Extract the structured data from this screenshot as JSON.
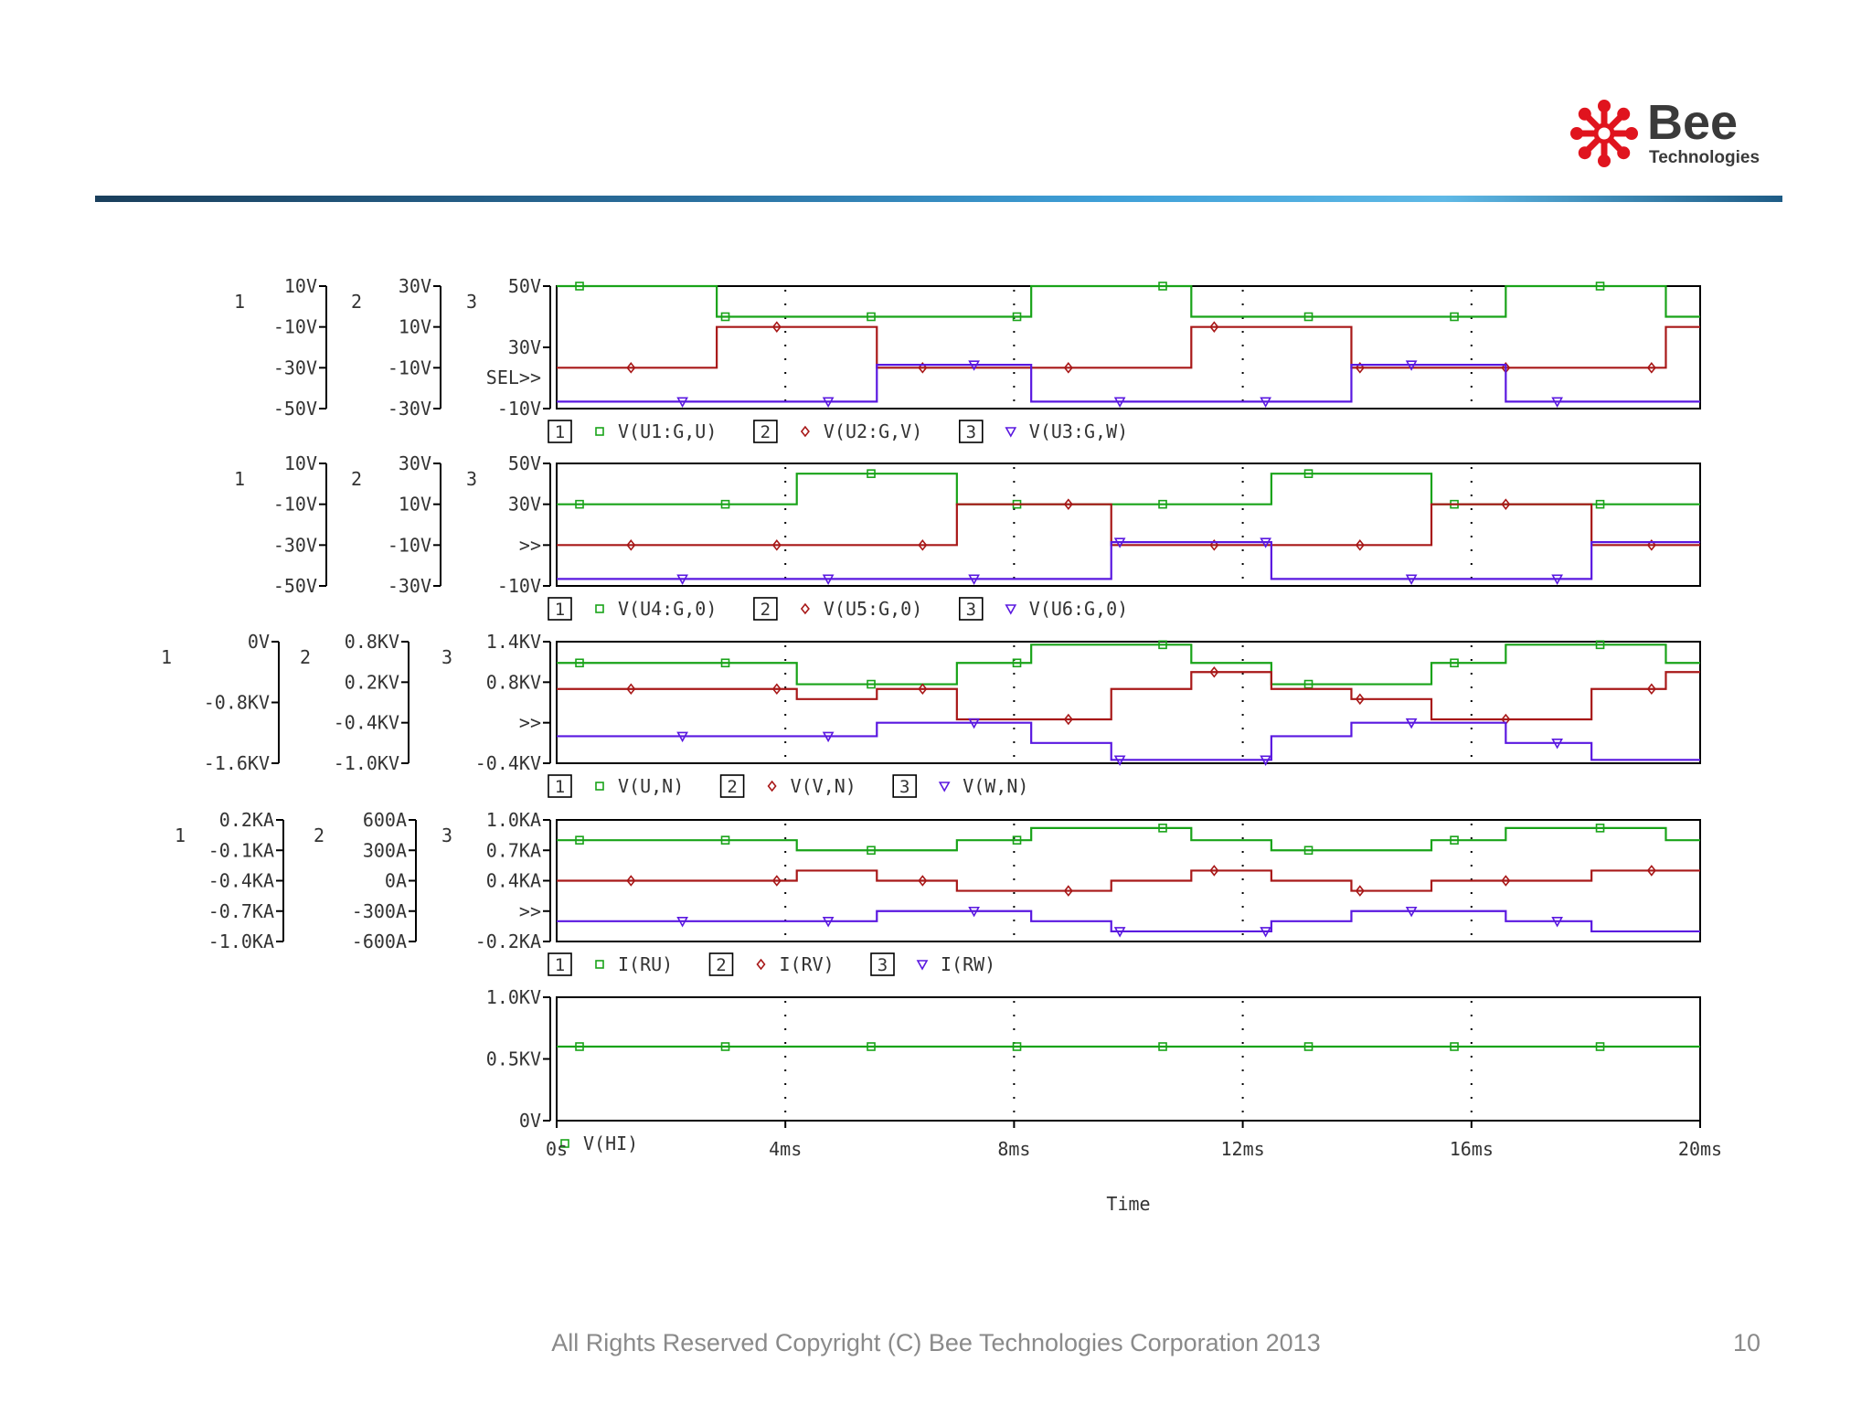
{
  "slide": {
    "copyright": "All Rights Reserved Copyright (C) Bee Technologies Corporation 2013",
    "page_number": "10",
    "logo": {
      "name": "Bee",
      "subtitle": "Technologies"
    }
  },
  "colors": {
    "trace1": "#19a319",
    "trace2": "#a81818",
    "trace3": "#5a18e0",
    "axis": "#000000",
    "text": "#333333",
    "logo_red": "#e0141e"
  },
  "chart_data": {
    "type": "line",
    "xlabel": "Time",
    "x_ticks": [
      "0s",
      "4ms",
      "8ms",
      "12ms",
      "16ms",
      "20ms"
    ],
    "xlim": [
      0,
      20
    ],
    "x_unit": "ms",
    "panels": [
      {
        "axes": [
          {
            "index": "1",
            "ticks": [
              "10V",
              "-10V",
              "-30V",
              "-50V"
            ],
            "ylim": [
              -50,
              10
            ]
          },
          {
            "index": "2",
            "ticks": [
              "30V",
              "10V",
              "-10V",
              "-30V"
            ],
            "ylim": [
              -30,
              30
            ]
          },
          {
            "index": "3",
            "ticks": [
              "50V",
              "30V",
              "-10V"
            ],
            "ylim": [
              -10,
              60
            ],
            "sel_marker": "SEL>>"
          }
        ],
        "series": [
          {
            "name": "V(U1:G,U)",
            "axis": "1",
            "marker": "square",
            "low": -5,
            "high": 10,
            "transitions": [
              2.8,
              8.3,
              11.1,
              16.6,
              19.4
            ],
            "start_high": true
          },
          {
            "name": "V(U2:G,V)",
            "axis": "2",
            "marker": "diamond",
            "low": -10,
            "high": 10,
            "transitions": [
              2.8,
              5.6,
              11.1,
              13.9,
              19.4
            ],
            "start_high": false
          },
          {
            "name": "V(U3:G,W)",
            "axis": "3",
            "marker": "triangle",
            "low": -6,
            "high": 15,
            "transitions": [
              5.6,
              8.3,
              13.9,
              16.6
            ],
            "start_high": false
          }
        ]
      },
      {
        "axes": [
          {
            "index": "1",
            "ticks": [
              "10V",
              "-10V",
              "-30V",
              "-50V"
            ],
            "ylim": [
              -50,
              10
            ]
          },
          {
            "index": "2",
            "ticks": [
              "30V",
              "10V",
              "-10V",
              "-30V"
            ],
            "ylim": [
              -30,
              30
            ]
          },
          {
            "index": "3",
            "ticks": [
              "50V",
              "30V",
              ">>",
              "-10V"
            ],
            "ylim": [
              -10,
              60
            ]
          }
        ],
        "series": [
          {
            "name": "V(U4:G,0)",
            "axis": "1",
            "marker": "square",
            "low": -10,
            "high": 5,
            "transitions": [
              4.2,
              7.0,
              12.5,
              15.3
            ],
            "start_high": false
          },
          {
            "name": "V(U5:G,0)",
            "axis": "2",
            "marker": "diamond",
            "low": -10,
            "high": 10,
            "transitions": [
              7.0,
              9.7,
              15.3,
              18.1
            ],
            "start_high": false
          },
          {
            "name": "V(U6:G,0)",
            "axis": "3",
            "marker": "triangle",
            "low": -6,
            "high": 15,
            "transitions": [
              9.7,
              12.5,
              18.1
            ],
            "start_high": false
          }
        ]
      },
      {
        "axes": [
          {
            "index": "1",
            "ticks": [
              "0V",
              "-0.8KV",
              "-1.6KV"
            ],
            "ylim": [
              -1.6,
              0.4
            ]
          },
          {
            "index": "2",
            "ticks": [
              "0.8KV",
              "0.2KV",
              "-0.4KV",
              "-1.0KV"
            ],
            "ylim": [
              -1.0,
              0.8
            ]
          },
          {
            "index": "3",
            "ticks": [
              "1.4KV",
              "0.8KV",
              ">>",
              "-0.4KV"
            ],
            "ylim": [
              -0.4,
              1.4
            ]
          }
        ],
        "series": [
          {
            "name": "V(U,N)",
            "axis": "1",
            "marker": "square",
            "levels": [
              [
                0,
                4.2,
                0.05
              ],
              [
                4.2,
                7.0,
                -0.3
              ],
              [
                7.0,
                8.3,
                0.05
              ],
              [
                8.3,
                11.1,
                0.35
              ],
              [
                11.1,
                12.5,
                0.05
              ],
              [
                12.5,
                15.3,
                -0.3
              ],
              [
                15.3,
                16.6,
                0.05
              ],
              [
                16.6,
                19.4,
                0.35
              ],
              [
                19.4,
                20,
                0.05
              ]
            ]
          },
          {
            "name": "V(V,N)",
            "axis": "2",
            "marker": "diamond",
            "levels": [
              [
                0,
                4.2,
                0.1
              ],
              [
                4.2,
                5.6,
                -0.05
              ],
              [
                5.6,
                7.0,
                0.1
              ],
              [
                7.0,
                9.7,
                -0.35
              ],
              [
                9.7,
                11.1,
                0.1
              ],
              [
                11.1,
                12.5,
                0.35
              ],
              [
                12.5,
                13.9,
                0.1
              ],
              [
                13.9,
                15.3,
                -0.05
              ],
              [
                15.3,
                18.1,
                -0.35
              ],
              [
                18.1,
                19.4,
                0.1
              ],
              [
                19.4,
                20,
                0.35
              ]
            ]
          },
          {
            "name": "V(W,N)",
            "axis": "3",
            "marker": "triangle",
            "levels": [
              [
                0,
                5.6,
                0.0
              ],
              [
                5.6,
                8.3,
                0.2
              ],
              [
                8.3,
                9.7,
                -0.1
              ],
              [
                9.7,
                12.5,
                -0.35
              ],
              [
                12.5,
                13.9,
                0.0
              ],
              [
                13.9,
                16.6,
                0.2
              ],
              [
                16.6,
                18.1,
                -0.1
              ],
              [
                18.1,
                20,
                -0.35
              ]
            ]
          }
        ]
      },
      {
        "axes": [
          {
            "index": "1",
            "ticks": [
              "0.2KA",
              "-0.1KA",
              "-0.4KA",
              "-0.7KA",
              "-1.0KA"
            ],
            "ylim": [
              -1.0,
              0.2
            ]
          },
          {
            "index": "2",
            "ticks": [
              "600A",
              "300A",
              "0A",
              "-300A",
              "-600A"
            ],
            "ylim": [
              -600,
              600
            ]
          },
          {
            "index": "3",
            "ticks": [
              "1.0KA",
              "0.7KA",
              "0.4KA",
              ">>",
              "-0.2KA"
            ],
            "ylim": [
              -0.2,
              1.0
            ]
          }
        ],
        "series": [
          {
            "name": "I(RU)",
            "axis": "1",
            "marker": "square",
            "levels": [
              [
                0,
                4.2,
                0.0
              ],
              [
                4.2,
                7.0,
                -0.1
              ],
              [
                7.0,
                8.3,
                0.0
              ],
              [
                8.3,
                11.1,
                0.12
              ],
              [
                11.1,
                12.5,
                0.0
              ],
              [
                12.5,
                15.3,
                -0.1
              ],
              [
                15.3,
                16.6,
                0.0
              ],
              [
                16.6,
                19.4,
                0.12
              ],
              [
                19.4,
                20,
                0.0
              ]
            ]
          },
          {
            "name": "I(RV)",
            "axis": "2",
            "marker": "diamond",
            "levels": [
              [
                0,
                4.2,
                0.0
              ],
              [
                4.2,
                5.6,
                100
              ],
              [
                5.6,
                7.0,
                0.0
              ],
              [
                7.0,
                9.7,
                -100
              ],
              [
                9.7,
                11.1,
                0.0
              ],
              [
                11.1,
                12.5,
                100
              ],
              [
                12.5,
                13.9,
                0.0
              ],
              [
                13.9,
                15.3,
                -100
              ],
              [
                15.3,
                18.1,
                0.0
              ],
              [
                18.1,
                20,
                100
              ]
            ]
          },
          {
            "name": "I(RW)",
            "axis": "3",
            "marker": "triangle",
            "levels": [
              [
                0,
                5.6,
                0.0
              ],
              [
                5.6,
                8.3,
                0.1
              ],
              [
                8.3,
                9.7,
                0.0
              ],
              [
                9.7,
                12.5,
                -0.1
              ],
              [
                12.5,
                13.9,
                0.0
              ],
              [
                13.9,
                16.6,
                0.1
              ],
              [
                16.6,
                18.1,
                0.0
              ],
              [
                18.1,
                20,
                -0.1
              ]
            ]
          }
        ]
      },
      {
        "axes": [
          {
            "index": "",
            "ticks": [
              "1.0KV",
              "0.5KV",
              "0V"
            ],
            "ylim": [
              0,
              1.0
            ]
          }
        ],
        "series": [
          {
            "name": "V(HI)",
            "axis": "1",
            "marker": "square",
            "levels": [
              [
                0,
                20,
                0.6
              ]
            ]
          }
        ]
      }
    ]
  }
}
